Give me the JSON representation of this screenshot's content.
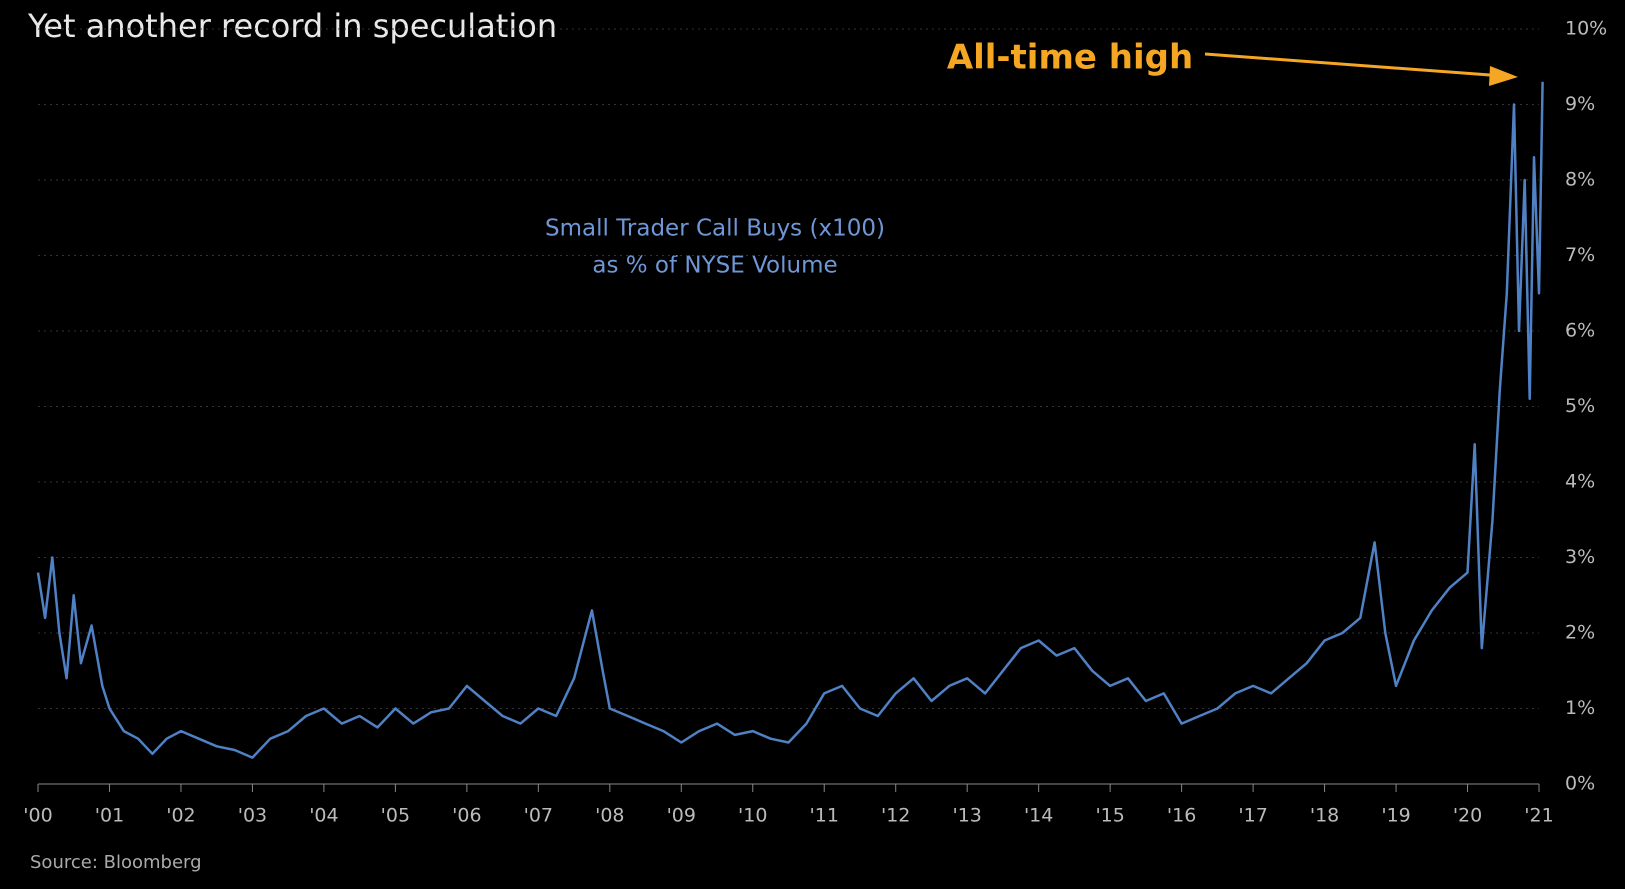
{
  "chart_data": {
    "type": "line",
    "title": "Yet another record in speculation",
    "series_label": [
      "Small Trader Call Buys (x100)",
      "as % of NYSE Volume"
    ],
    "annotation": "All-time high",
    "source": "Source: Bloomberg",
    "grid": true,
    "xlim": [
      2000,
      2021
    ],
    "xticks": [
      {
        "value": 2000,
        "label": "'00"
      },
      {
        "value": 2001,
        "label": "'01"
      },
      {
        "value": 2002,
        "label": "'02"
      },
      {
        "value": 2003,
        "label": "'03"
      },
      {
        "value": 2004,
        "label": "'04"
      },
      {
        "value": 2005,
        "label": "'05"
      },
      {
        "value": 2006,
        "label": "'06"
      },
      {
        "value": 2007,
        "label": "'07"
      },
      {
        "value": 2008,
        "label": "'08"
      },
      {
        "value": 2009,
        "label": "'09"
      },
      {
        "value": 2010,
        "label": "'10"
      },
      {
        "value": 2011,
        "label": "'11"
      },
      {
        "value": 2012,
        "label": "'12"
      },
      {
        "value": 2013,
        "label": "'13"
      },
      {
        "value": 2014,
        "label": "'14"
      },
      {
        "value": 2015,
        "label": "'15"
      },
      {
        "value": 2016,
        "label": "'16"
      },
      {
        "value": 2017,
        "label": "'17"
      },
      {
        "value": 2018,
        "label": "'18"
      },
      {
        "value": 2019,
        "label": "'19"
      },
      {
        "value": 2020,
        "label": "'20"
      },
      {
        "value": 2021,
        "label": "'21"
      }
    ],
    "ylim": [
      0,
      10
    ],
    "yticks": [
      {
        "value": 0,
        "label": "0%"
      },
      {
        "value": 1,
        "label": "1%"
      },
      {
        "value": 2,
        "label": "2%"
      },
      {
        "value": 3,
        "label": "3%"
      },
      {
        "value": 4,
        "label": "4%"
      },
      {
        "value": 5,
        "label": "5%"
      },
      {
        "value": 6,
        "label": "6%"
      },
      {
        "value": 7,
        "label": "7%"
      },
      {
        "value": 8,
        "label": "8%"
      },
      {
        "value": 9,
        "label": "9%"
      },
      {
        "value": 10,
        "label": "10%"
      }
    ],
    "x": [
      2000.0,
      2000.1,
      2000.2,
      2000.3,
      2000.4,
      2000.5,
      2000.6,
      2000.75,
      2000.9,
      2001.0,
      2001.2,
      2001.4,
      2001.6,
      2001.8,
      2002.0,
      2002.25,
      2002.5,
      2002.75,
      2003.0,
      2003.25,
      2003.5,
      2003.75,
      2004.0,
      2004.25,
      2004.5,
      2004.75,
      2005.0,
      2005.25,
      2005.5,
      2005.75,
      2006.0,
      2006.25,
      2006.5,
      2006.75,
      2007.0,
      2007.25,
      2007.5,
      2007.75,
      2007.9,
      2008.0,
      2008.25,
      2008.5,
      2008.75,
      2009.0,
      2009.25,
      2009.5,
      2009.75,
      2010.0,
      2010.25,
      2010.5,
      2010.75,
      2011.0,
      2011.25,
      2011.5,
      2011.75,
      2012.0,
      2012.25,
      2012.5,
      2012.75,
      2013.0,
      2013.25,
      2013.5,
      2013.75,
      2014.0,
      2014.25,
      2014.5,
      2014.75,
      2015.0,
      2015.25,
      2015.5,
      2015.75,
      2016.0,
      2016.25,
      2016.5,
      2016.75,
      2017.0,
      2017.25,
      2017.5,
      2017.75,
      2018.0,
      2018.25,
      2018.5,
      2018.7,
      2018.85,
      2019.0,
      2019.25,
      2019.5,
      2019.75,
      2020.0,
      2020.1,
      2020.2,
      2020.35,
      2020.45,
      2020.55,
      2020.65,
      2020.72,
      2020.8,
      2020.87,
      2020.93,
      2021.0,
      2021.05
    ],
    "series": [
      {
        "name": "Small Trader Call Buys",
        "color": "#4f81c4",
        "values": [
          2.8,
          2.2,
          3.0,
          2.0,
          1.4,
          2.5,
          1.6,
          2.1,
          1.3,
          1.0,
          0.7,
          0.6,
          0.4,
          0.6,
          0.7,
          0.6,
          0.5,
          0.45,
          0.35,
          0.6,
          0.7,
          0.9,
          1.0,
          0.8,
          0.9,
          0.75,
          1.0,
          0.8,
          0.95,
          1.0,
          1.3,
          1.1,
          0.9,
          0.8,
          1.0,
          0.9,
          1.4,
          2.3,
          1.5,
          1.0,
          0.9,
          0.8,
          0.7,
          0.55,
          0.7,
          0.8,
          0.65,
          0.7,
          0.6,
          0.55,
          0.8,
          1.2,
          1.3,
          1.0,
          0.9,
          1.2,
          1.4,
          1.1,
          1.3,
          1.4,
          1.2,
          1.5,
          1.8,
          1.9,
          1.7,
          1.8,
          1.5,
          1.3,
          1.4,
          1.1,
          1.2,
          0.8,
          0.9,
          1.0,
          1.2,
          1.3,
          1.2,
          1.4,
          1.6,
          1.9,
          2.0,
          2.2,
          3.2,
          2.0,
          1.3,
          1.9,
          2.3,
          2.6,
          2.8,
          4.5,
          1.8,
          3.5,
          5.2,
          6.5,
          9.0,
          6.0,
          8.0,
          5.1,
          8.3,
          6.5,
          9.3
        ]
      }
    ]
  }
}
